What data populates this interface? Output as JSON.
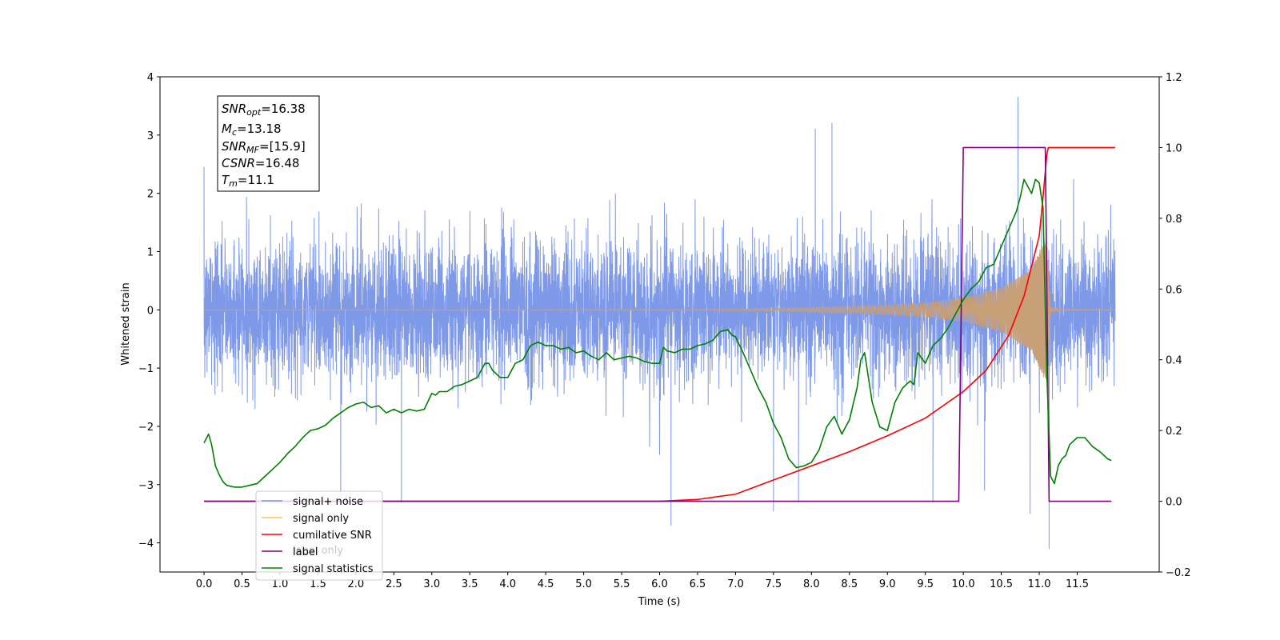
{
  "chart_data": {
    "type": "line",
    "xlabel": "Time (s)",
    "ylabel_left": "Whitened strain",
    "xlim": [
      -0.58,
      12.58
    ],
    "ylim_left": [
      -4.5,
      4
    ],
    "ylim_right": [
      -0.2,
      1.2
    ],
    "x_ticks": [
      0.0,
      0.5,
      1.0,
      1.5,
      2.0,
      2.5,
      3.0,
      3.5,
      4.0,
      4.5,
      5.0,
      5.5,
      6.0,
      6.5,
      7.0,
      7.5,
      8.0,
      8.5,
      9.0,
      9.5,
      10.0,
      10.5,
      11.0,
      11.5
    ],
    "x_tick_labels": [
      "0.0",
      "0.5",
      "1.0",
      "1.5",
      "2.0",
      "2.5",
      "3.0",
      "3.5",
      "4.0",
      "4.5",
      "5.0",
      "5.5",
      "6.0",
      "6.5",
      "7.0",
      "7.5",
      "8.0",
      "8.5",
      "9.0",
      "9.5",
      "10.0",
      "10.5",
      "11.0",
      "11.5"
    ],
    "y_left_ticks": [
      -4,
      -3,
      -2,
      -1,
      0,
      1,
      2,
      3,
      4
    ],
    "y_left_tick_labels": [
      "−4",
      "−3",
      "−2",
      "−1",
      "0",
      "1",
      "2",
      "3",
      "4"
    ],
    "y_right_ticks": [
      -0.2,
      0.0,
      0.2,
      0.4,
      0.6,
      0.8,
      1.0,
      1.2
    ],
    "y_right_tick_labels": [
      "−0.2",
      "0.0",
      "0.2",
      "0.4",
      "0.6",
      "0.8",
      "1.0",
      "1.2"
    ],
    "legend_position": "lower-left",
    "legend": [
      {
        "label": "signal+ noise",
        "color": "#7893e8"
      },
      {
        "label": "signal only",
        "color": "#ffbf5f"
      },
      {
        "label": "cumilative SNR",
        "color": "#ff0000"
      },
      {
        "label": "label",
        "color": "#800080"
      },
      {
        "label": "signal statistics",
        "color": "#008000"
      }
    ],
    "legend_hidden_label": "label only",
    "info_box": {
      "snr_opt": "16.38",
      "mc": "13.18",
      "snr_mf": "[15.9]",
      "csnr": "16.48",
      "tm": "11.1"
    },
    "series": [
      {
        "name": "signal+ noise",
        "axis": "left",
        "color": "#7893e8",
        "t_range": [
          0.0,
          12.0
        ],
        "typical_envelope": [
          -1.6,
          1.6
        ],
        "extremes": [
          {
            "t": 10.72,
            "y": 3.65
          },
          {
            "t": 11.13,
            "y": -4.1
          },
          {
            "t": 6.15,
            "y": -3.7
          },
          {
            "t": 8.05,
            "y": 3.1
          },
          {
            "t": 8.27,
            "y": 3.2
          },
          {
            "t": 10.28,
            "y": -3.1
          },
          {
            "t": 10.88,
            "y": -3.5
          },
          {
            "t": 0.0,
            "y": 2.45
          },
          {
            "t": 1.8,
            "y": -3.2
          },
          {
            "t": 2.6,
            "y": -3.3
          },
          {
            "t": 7.5,
            "y": -3.45
          },
          {
            "t": 7.83,
            "y": -3.3
          },
          {
            "t": 9.6,
            "y": -3.3
          }
        ]
      },
      {
        "name": "signal only",
        "axis": "left",
        "color": "#c8a078",
        "chirp_amplitude": [
          {
            "t": 0.0,
            "a": 0.005
          },
          {
            "t": 6.5,
            "a": 0.01
          },
          {
            "t": 7.0,
            "a": 0.02
          },
          {
            "t": 8.0,
            "a": 0.04
          },
          {
            "t": 9.0,
            "a": 0.08
          },
          {
            "t": 9.5,
            "a": 0.12
          },
          {
            "t": 10.0,
            "a": 0.2
          },
          {
            "t": 10.5,
            "a": 0.38
          },
          {
            "t": 10.9,
            "a": 0.7
          },
          {
            "t": 11.05,
            "a": 1.15
          },
          {
            "t": 11.1,
            "a": 1.2
          },
          {
            "t": 11.15,
            "a": 0.04
          },
          {
            "t": 11.3,
            "a": 0.01
          },
          {
            "t": 12.0,
            "a": 0.005
          }
        ]
      },
      {
        "name": "cumilative SNR",
        "axis": "right",
        "color": "#ff0000",
        "x": [
          0.0,
          6.0,
          6.5,
          7.0,
          7.5,
          8.0,
          8.5,
          9.0,
          9.5,
          10.0,
          10.3,
          10.6,
          10.8,
          11.0,
          11.05,
          11.1,
          11.12,
          11.2,
          12.0
        ],
        "y": [
          0.0,
          0.0,
          0.005,
          0.02,
          0.06,
          0.1,
          0.14,
          0.185,
          0.235,
          0.31,
          0.37,
          0.47,
          0.58,
          0.75,
          0.86,
          0.98,
          1.0,
          1.0,
          1.0
        ]
      },
      {
        "name": "label",
        "axis": "right",
        "color": "#800080",
        "x": [
          0.0,
          9.94,
          10.0,
          11.08,
          11.13,
          11.95
        ],
        "y": [
          0.0,
          0.0,
          1.0,
          1.0,
          0.0,
          0.0
        ]
      },
      {
        "name": "signal statistics",
        "axis": "right",
        "color": "#008000",
        "x": [
          0.0,
          0.06,
          0.1,
          0.15,
          0.2,
          0.25,
          0.3,
          0.4,
          0.5,
          0.6,
          0.7,
          0.8,
          0.9,
          1.0,
          1.1,
          1.2,
          1.3,
          1.4,
          1.5,
          1.6,
          1.7,
          1.8,
          1.9,
          2.0,
          2.1,
          2.2,
          2.3,
          2.4,
          2.5,
          2.6,
          2.7,
          2.8,
          2.9,
          3.0,
          3.05,
          3.1,
          3.2,
          3.3,
          3.4,
          3.5,
          3.6,
          3.7,
          3.75,
          3.8,
          3.9,
          4.0,
          4.1,
          4.2,
          4.3,
          4.4,
          4.5,
          4.6,
          4.7,
          4.8,
          4.9,
          5.0,
          5.1,
          5.2,
          5.3,
          5.4,
          5.5,
          5.6,
          5.7,
          5.8,
          5.9,
          6.0,
          6.05,
          6.1,
          6.2,
          6.3,
          6.4,
          6.5,
          6.6,
          6.7,
          6.8,
          6.9,
          6.95,
          7.0,
          7.1,
          7.2,
          7.3,
          7.4,
          7.5,
          7.6,
          7.7,
          7.8,
          7.9,
          8.0,
          8.1,
          8.2,
          8.3,
          8.4,
          8.5,
          8.6,
          8.65,
          8.7,
          8.8,
          8.9,
          9.0,
          9.1,
          9.2,
          9.3,
          9.35,
          9.4,
          9.5,
          9.6,
          9.7,
          9.8,
          9.9,
          10.0,
          10.1,
          10.2,
          10.3,
          10.4,
          10.5,
          10.6,
          10.7,
          10.75,
          10.8,
          10.9,
          10.95,
          11.0,
          11.05,
          11.1,
          11.15,
          11.2,
          11.25,
          11.3,
          11.35,
          11.4,
          11.5,
          11.6,
          11.7,
          11.8,
          11.9,
          11.95
        ],
        "y": [
          0.165,
          0.19,
          0.16,
          0.1,
          0.075,
          0.055,
          0.045,
          0.04,
          0.04,
          0.045,
          0.05,
          0.07,
          0.09,
          0.11,
          0.135,
          0.155,
          0.18,
          0.2,
          0.205,
          0.215,
          0.235,
          0.25,
          0.265,
          0.275,
          0.28,
          0.265,
          0.27,
          0.25,
          0.26,
          0.25,
          0.26,
          0.255,
          0.26,
          0.305,
          0.3,
          0.31,
          0.31,
          0.325,
          0.33,
          0.34,
          0.35,
          0.39,
          0.39,
          0.37,
          0.35,
          0.35,
          0.39,
          0.4,
          0.44,
          0.45,
          0.44,
          0.44,
          0.43,
          0.435,
          0.42,
          0.425,
          0.41,
          0.4,
          0.42,
          0.4,
          0.405,
          0.41,
          0.405,
          0.395,
          0.39,
          0.39,
          0.435,
          0.425,
          0.42,
          0.43,
          0.43,
          0.44,
          0.445,
          0.455,
          0.48,
          0.485,
          0.47,
          0.465,
          0.42,
          0.37,
          0.32,
          0.28,
          0.22,
          0.18,
          0.12,
          0.095,
          0.1,
          0.11,
          0.145,
          0.21,
          0.24,
          0.19,
          0.23,
          0.32,
          0.4,
          0.42,
          0.28,
          0.21,
          0.2,
          0.28,
          0.32,
          0.34,
          0.33,
          0.42,
          0.39,
          0.44,
          0.46,
          0.49,
          0.53,
          0.57,
          0.6,
          0.62,
          0.66,
          0.67,
          0.72,
          0.77,
          0.82,
          0.86,
          0.91,
          0.87,
          0.91,
          0.9,
          0.83,
          0.36,
          0.07,
          0.05,
          0.1,
          0.12,
          0.13,
          0.16,
          0.18,
          0.18,
          0.155,
          0.14,
          0.12,
          0.115
        ]
      }
    ]
  }
}
